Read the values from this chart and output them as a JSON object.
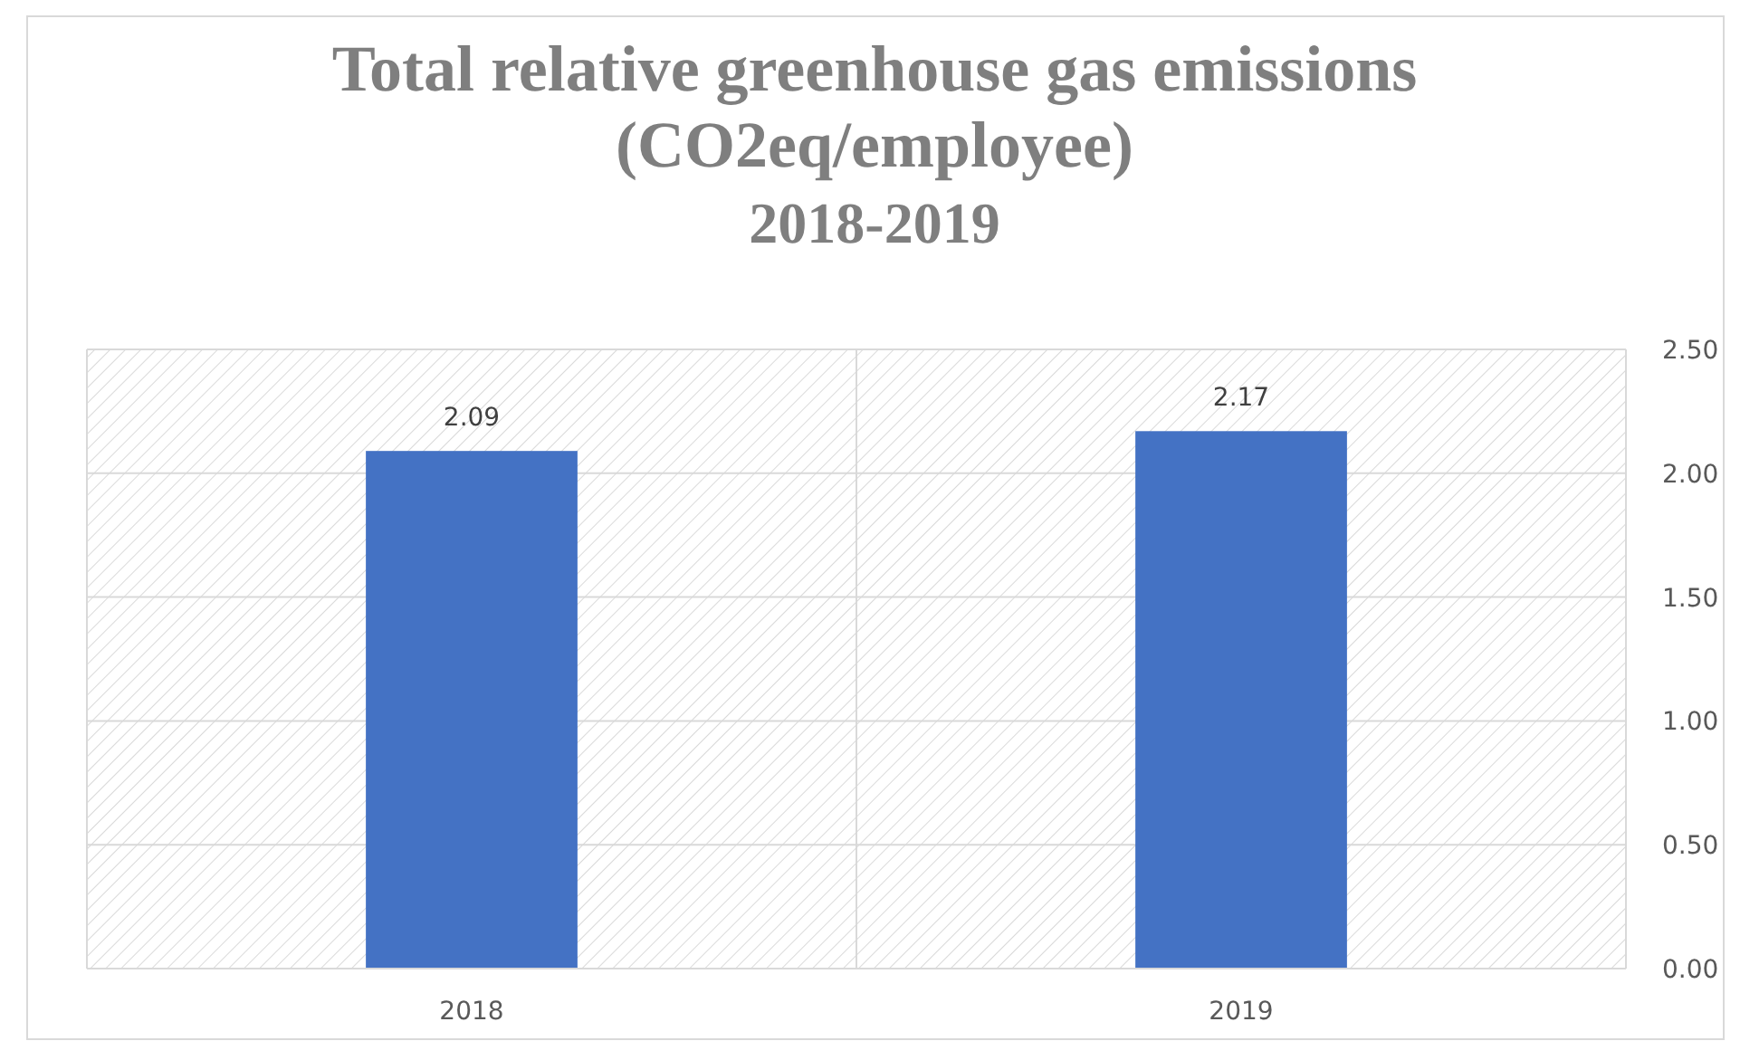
{
  "chart_data": {
    "type": "bar",
    "title": "Total relative greenhouse gas emissions\n(CO2eq/employee)\n2018-2019",
    "categories": [
      "2018",
      "2019"
    ],
    "values": [
      2.09,
      2.17
    ],
    "color": "#4472c4",
    "ylim": [
      0,
      2.5
    ],
    "yticks": [
      {
        "value": 0,
        "label": "0.00"
      },
      {
        "value": 0.5,
        "label": "0.50"
      },
      {
        "value": 1,
        "label": "1.00"
      },
      {
        "value": 1.5,
        "label": "1.50"
      },
      {
        "value": 2,
        "label": "2.00"
      },
      {
        "value": 2.5,
        "label": "2.50"
      }
    ],
    "grid": true,
    "data_labels": true
  }
}
